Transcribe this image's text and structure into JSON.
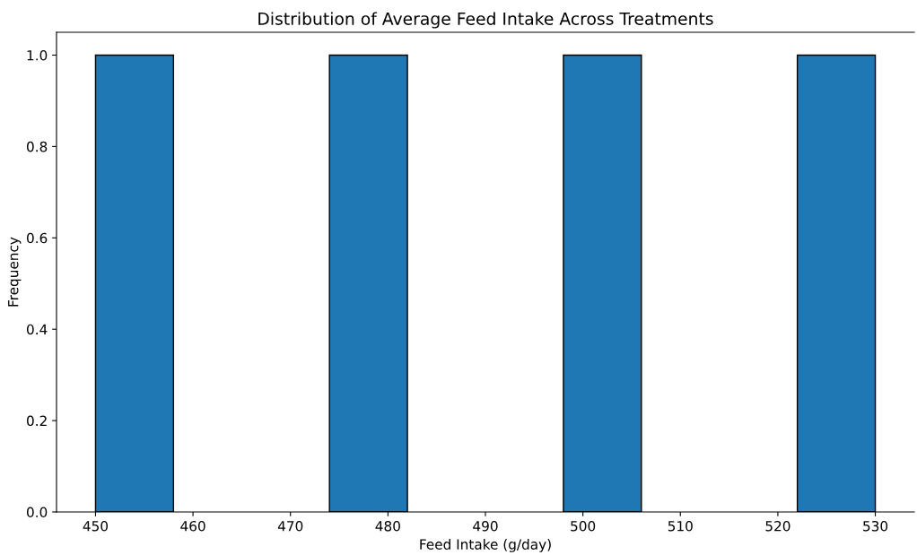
{
  "chart_data": {
    "type": "histogram",
    "title": "Distribution of Average Feed Intake Across Treatments",
    "xlabel": "Feed Intake (g/day)",
    "ylabel": "Frequency",
    "bins": [
      450,
      458,
      466,
      474,
      482,
      490,
      498,
      506,
      514,
      522,
      530
    ],
    "values": [
      1,
      0,
      0,
      1,
      0,
      0,
      1,
      0,
      0,
      1
    ],
    "color": "#1f77b4",
    "xlim": [
      446,
      534
    ],
    "xticks": [
      450,
      460,
      470,
      480,
      490,
      500,
      510,
      520,
      530
    ],
    "ylim": [
      0,
      1.05
    ],
    "yticks": [
      {
        "value": 0,
        "label": "0.0"
      },
      {
        "value": 0.2,
        "label": "0.2"
      },
      {
        "value": 0.4,
        "label": "0.4"
      },
      {
        "value": 0.6,
        "label": "0.6"
      },
      {
        "value": 0.8,
        "label": "0.8"
      },
      {
        "value": 1.0,
        "label": "1.0"
      }
    ],
    "grid": false
  }
}
